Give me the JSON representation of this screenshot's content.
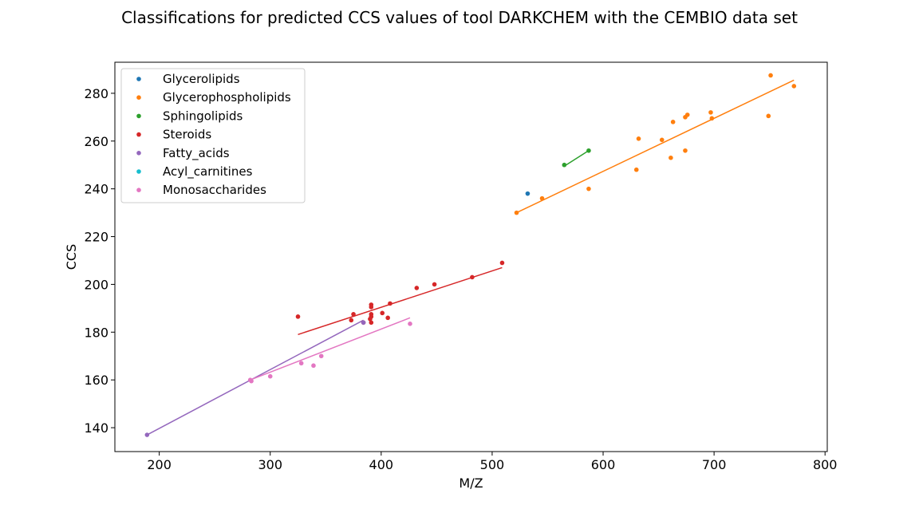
{
  "chart_data": {
    "type": "scatter",
    "title": "Classifications for predicted CCS values of tool DARKCHEM with the CEMBIO data set",
    "xlabel": "M/Z",
    "ylabel": "CCS",
    "xlim": [
      160,
      802
    ],
    "ylim": [
      130,
      293
    ],
    "xticks": [
      200,
      300,
      400,
      500,
      600,
      700,
      800
    ],
    "yticks": [
      140,
      160,
      180,
      200,
      220,
      240,
      260,
      280
    ],
    "grid": false,
    "legend_position": "top-left",
    "series": [
      {
        "name": "Glycerolipids",
        "color": "#1f77b4",
        "points": [
          [
            532,
            238
          ]
        ],
        "fit": null
      },
      {
        "name": "Glycerophospholipids",
        "color": "#ff7f0e",
        "points": [
          [
            522,
            230
          ],
          [
            545,
            236
          ],
          [
            587,
            240
          ],
          [
            630,
            248
          ],
          [
            632,
            261
          ],
          [
            653,
            260.5
          ],
          [
            661,
            253
          ],
          [
            663,
            268
          ],
          [
            674,
            256
          ],
          [
            674,
            270
          ],
          [
            676,
            271
          ],
          [
            697,
            272
          ],
          [
            698,
            269.5
          ],
          [
            749,
            270.5
          ],
          [
            751,
            287.5
          ],
          [
            772,
            283
          ]
        ],
        "fit": [
          [
            522,
            230
          ],
          [
            772,
            285.5
          ]
        ]
      },
      {
        "name": "Sphingolipids",
        "color": "#2ca02c",
        "points": [
          [
            565,
            250
          ],
          [
            587,
            256
          ]
        ],
        "fit": [
          [
            565,
            249.5
          ],
          [
            587,
            256
          ]
        ]
      },
      {
        "name": "Steroids",
        "color": "#d62728",
        "points": [
          [
            325,
            186.5
          ],
          [
            373,
            185
          ],
          [
            375,
            187.5
          ],
          [
            384,
            184
          ],
          [
            390,
            185.5
          ],
          [
            391,
            184
          ],
          [
            391,
            187.5
          ],
          [
            391,
            186.5
          ],
          [
            391,
            190.5
          ],
          [
            391,
            191.5
          ],
          [
            401,
            188
          ],
          [
            406,
            186
          ],
          [
            408,
            192
          ],
          [
            432,
            198.5
          ],
          [
            448,
            200
          ],
          [
            482,
            203
          ],
          [
            509,
            209
          ]
        ],
        "fit": [
          [
            325,
            179
          ],
          [
            509,
            207
          ]
        ]
      },
      {
        "name": "Fatty_acids",
        "color": "#9467bd",
        "points": [
          [
            189,
            137
          ],
          [
            384,
            184
          ]
        ],
        "fit": [
          [
            189,
            137
          ],
          [
            384,
            185
          ]
        ]
      },
      {
        "name": "Acyl_carnitines",
        "color": "#17becf",
        "points": [],
        "fit": null
      },
      {
        "name": "Monosaccharides",
        "color": "#e377c2",
        "points": [
          [
            282,
            160
          ],
          [
            283,
            159.5
          ],
          [
            300,
            161.5
          ],
          [
            328,
            167
          ],
          [
            339,
            166
          ],
          [
            346,
            170
          ],
          [
            426,
            183.5
          ]
        ],
        "fit": [
          [
            282,
            160
          ],
          [
            426,
            186
          ]
        ]
      }
    ]
  }
}
